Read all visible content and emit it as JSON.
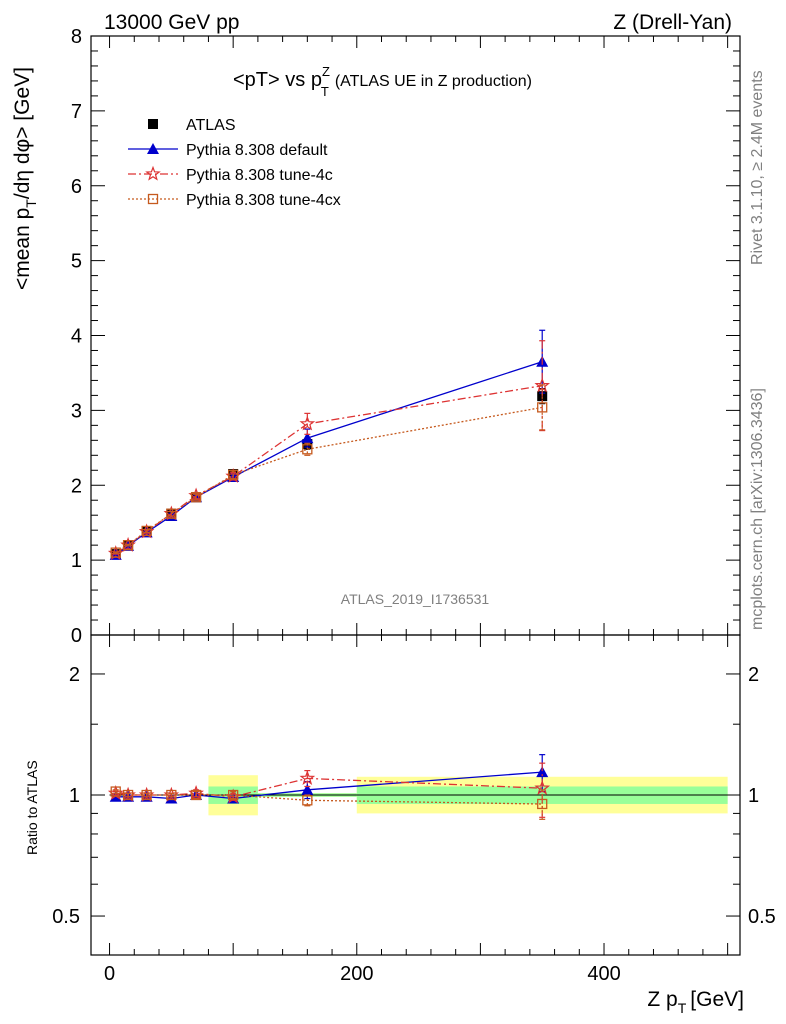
{
  "header": {
    "left": "13000 GeV pp",
    "right": "Z (Drell-Yan)"
  },
  "side_labels": {
    "rivet": "Rivet 3.1.10, ≥ 2.4M events",
    "mcplots": "mcplots.cern.ch [arXiv:1306.3436]"
  },
  "analysis_id": "ATLAS_2019_I1736531",
  "chart_data": [
    {
      "type": "line",
      "panel": "main",
      "title": "<pT> vs p",
      "title_sup": "Z",
      "title_sub": "T",
      "title_suffix": "(ATLAS UE in Z production)",
      "ylabel": "<mean p",
      "ylabel_sub": "T",
      "ylabel_suffix": "/dη dφ> [GeV]",
      "xlim": [
        -15,
        510
      ],
      "ylim": [
        0,
        8
      ],
      "yticks": [
        0,
        1,
        2,
        3,
        4,
        5,
        6,
        7,
        8
      ],
      "legend_position": "top-left",
      "series": [
        {
          "name": "ATLAS",
          "color": "#000000",
          "marker": "square",
          "line": "none",
          "x": [
            5,
            15,
            30,
            50,
            70,
            100,
            160,
            350
          ],
          "y": [
            1.08,
            1.2,
            1.38,
            1.62,
            1.84,
            2.15,
            2.55,
            3.19
          ],
          "err": [
            0.02,
            0.02,
            0.03,
            0.03,
            0.04,
            0.05,
            0.07,
            0.1
          ]
        },
        {
          "name": "Pythia 8.308 default",
          "color": "#0000cc",
          "marker": "triangle",
          "line": "solid",
          "x": [
            5,
            15,
            30,
            50,
            70,
            100,
            160,
            350
          ],
          "y": [
            1.07,
            1.19,
            1.37,
            1.59,
            1.84,
            2.11,
            2.63,
            3.65
          ],
          "err": [
            0.01,
            0.01,
            0.02,
            0.03,
            0.04,
            0.05,
            0.12,
            0.42
          ]
        },
        {
          "name": "Pythia 8.308 tune-4c",
          "color": "#dd3333",
          "marker": "star",
          "line": "dashdot",
          "x": [
            5,
            15,
            30,
            50,
            70,
            100,
            160,
            350
          ],
          "y": [
            1.09,
            1.2,
            1.38,
            1.62,
            1.86,
            2.12,
            2.82,
            3.33
          ],
          "err": [
            0.01,
            0.01,
            0.02,
            0.03,
            0.04,
            0.05,
            0.14,
            0.6
          ]
        },
        {
          "name": "Pythia 8.308 tune-4cx",
          "color": "#c65a1e",
          "marker": "open-square",
          "line": "dotted",
          "x": [
            5,
            15,
            30,
            50,
            70,
            100,
            160,
            350
          ],
          "y": [
            1.1,
            1.2,
            1.39,
            1.62,
            1.84,
            2.14,
            2.48,
            3.04
          ],
          "err": [
            0.01,
            0.01,
            0.02,
            0.03,
            0.04,
            0.05,
            0.08,
            0.3
          ]
        }
      ]
    },
    {
      "type": "line",
      "panel": "ratio",
      "xlabel": "Z p",
      "xlabel_sub": "T",
      "xlabel_suffix": "[GeV]",
      "ylabel": "Ratio to ATLAS",
      "xlim": [
        -15,
        510
      ],
      "ylim": [
        0.4,
        2.5
      ],
      "log_y": true,
      "xticks": [
        0,
        200,
        400
      ],
      "yticks": [
        0.5,
        1,
        2
      ],
      "bands": [
        {
          "x": [
            80,
            120
          ],
          "inner": [
            0.95,
            1.05
          ],
          "outer": [
            0.89,
            1.12
          ]
        },
        {
          "x": [
            120,
            200
          ],
          "inner": [
            0.99,
            1.01
          ],
          "outer": [
            0.99,
            1.01
          ]
        },
        {
          "x": [
            200,
            500
          ],
          "inner": [
            0.95,
            1.05
          ],
          "outer": [
            0.9,
            1.11
          ]
        }
      ],
      "band_colors": {
        "inner": "#99ff99",
        "outer": "#ffff99"
      },
      "series": [
        {
          "name": "Pythia 8.308 default",
          "color": "#0000cc",
          "marker": "triangle",
          "line": "solid",
          "x": [
            5,
            15,
            30,
            50,
            70,
            100,
            160,
            350
          ],
          "y": [
            0.99,
            0.99,
            0.99,
            0.98,
            1.0,
            0.98,
            1.03,
            1.14
          ],
          "err": [
            0.01,
            0.01,
            0.01,
            0.01,
            0.02,
            0.02,
            0.05,
            0.12
          ]
        },
        {
          "name": "Pythia 8.308 tune-4c",
          "color": "#dd3333",
          "marker": "star",
          "line": "dashdot",
          "x": [
            5,
            15,
            30,
            50,
            70,
            100,
            160,
            350
          ],
          "y": [
            1.01,
            1.0,
            1.0,
            1.0,
            1.01,
            0.99,
            1.1,
            1.04
          ],
          "err": [
            0.01,
            0.01,
            0.01,
            0.01,
            0.02,
            0.02,
            0.05,
            0.16
          ]
        },
        {
          "name": "Pythia 8.308 tune-4cx",
          "color": "#c65a1e",
          "marker": "open-square",
          "line": "dotted",
          "x": [
            5,
            15,
            30,
            50,
            70,
            100,
            160,
            350
          ],
          "y": [
            1.02,
            1.0,
            1.0,
            1.0,
            1.0,
            1.0,
            0.97,
            0.95
          ],
          "err": [
            0.01,
            0.01,
            0.01,
            0.01,
            0.02,
            0.02,
            0.03,
            0.08
          ]
        }
      ]
    }
  ]
}
